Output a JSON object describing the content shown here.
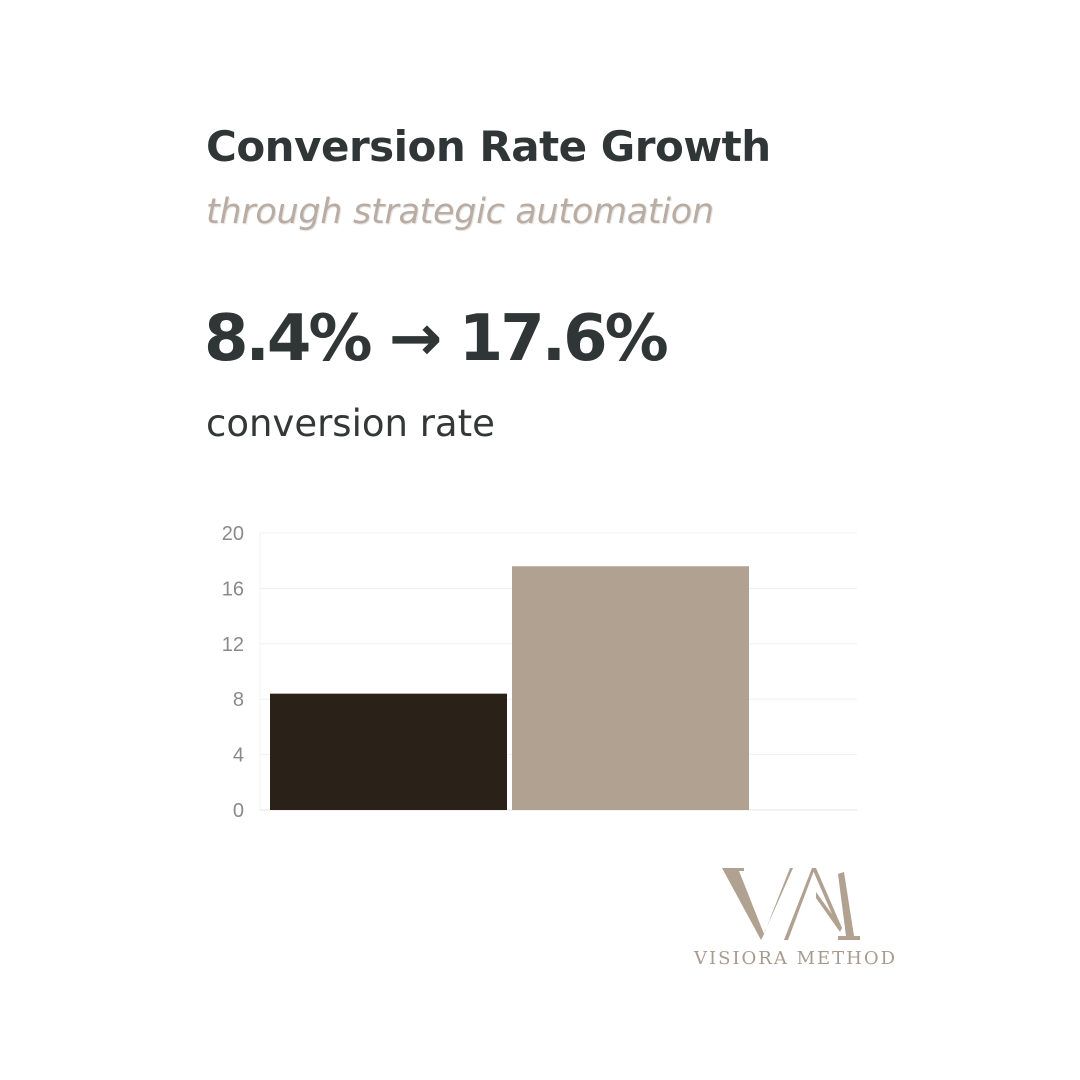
{
  "header": {
    "title": "Conversion Rate Growth",
    "subtitle": "through strategic automation",
    "headline": "8.4% → 17.6%",
    "caption": "conversion rate"
  },
  "chart_data": {
    "type": "bar",
    "categories": [
      "",
      ""
    ],
    "values": [
      8.4,
      17.6
    ],
    "colors": [
      "#2a2219",
      "#b0a191"
    ],
    "title": "",
    "xlabel": "",
    "ylabel": "",
    "ylim": [
      0,
      20
    ],
    "yticks": [
      0,
      4,
      8,
      12,
      16,
      20
    ],
    "ytick_labels": [
      "0",
      "4",
      "8",
      "12",
      "16",
      "20"
    ],
    "grid": true,
    "legend": "none"
  },
  "brand": {
    "logo_icon": "vm-monogram-logo",
    "name": "VISIORA METHOD",
    "color": "#b0a191"
  },
  "colors": {
    "text_dark": "#2f3635",
    "text_accent": "#b9aca2",
    "background": "#ffffff"
  }
}
